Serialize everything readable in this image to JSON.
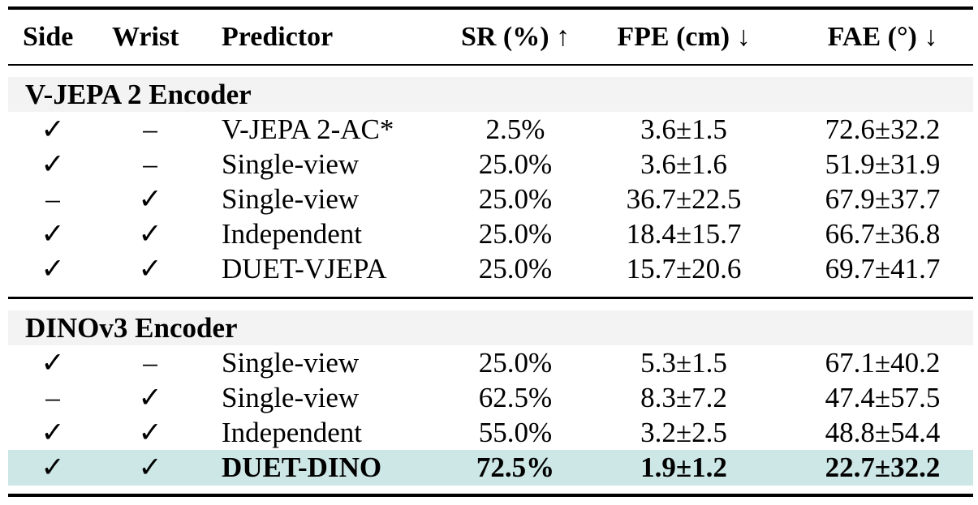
{
  "headers": {
    "side": "Side",
    "wrist": "Wrist",
    "predictor": "Predictor",
    "sr": "SR (%) ↑",
    "fpe": "FPE (cm) ↓",
    "fae": "FAE (°) ↓"
  },
  "sections": [
    {
      "title": "V-JEPA 2 Encoder",
      "rows": [
        {
          "side": "✓",
          "wrist": "–",
          "predictor": "V-JEPA 2-AC*",
          "sr": "2.5%",
          "fpe": "3.6±1.5",
          "fae": "72.6±32.2"
        },
        {
          "side": "✓",
          "wrist": "–",
          "predictor": "Single-view",
          "sr": "25.0%",
          "fpe": "3.6±1.6",
          "fae": "51.9±31.9"
        },
        {
          "side": "–",
          "wrist": "✓",
          "predictor": "Single-view",
          "sr": "25.0%",
          "fpe": "36.7±22.5",
          "fae": "67.9±37.7"
        },
        {
          "side": "✓",
          "wrist": "✓",
          "predictor": "Independent",
          "sr": "25.0%",
          "fpe": "18.4±15.7",
          "fae": "66.7±36.8"
        },
        {
          "side": "✓",
          "wrist": "✓",
          "predictor": "DUET-VJEPA",
          "sr": "25.0%",
          "fpe": "15.7±20.6",
          "fae": "69.7±41.7"
        }
      ]
    },
    {
      "title": "DINOv3 Encoder",
      "rows": [
        {
          "side": "✓",
          "wrist": "–",
          "predictor": "Single-view",
          "sr": "25.0%",
          "fpe": "5.3±1.5",
          "fae": "67.1±40.2"
        },
        {
          "side": "–",
          "wrist": "✓",
          "predictor": "Single-view",
          "sr": "62.5%",
          "fpe": "8.3±7.2",
          "fae": "47.4±57.5"
        },
        {
          "side": "✓",
          "wrist": "✓",
          "predictor": "Independent",
          "sr": "55.0%",
          "fpe": "3.2±2.5",
          "fae": "48.8±54.4"
        },
        {
          "side": "✓",
          "wrist": "✓",
          "predictor": "DUET-DINO",
          "sr": "72.5%",
          "fpe": "1.9±1.2",
          "fae": "22.7±32.2"
        }
      ]
    }
  ],
  "colors": {
    "highlight_row": "#cde6e6",
    "section_band": "#f3f3f3",
    "rule": "#000000"
  }
}
